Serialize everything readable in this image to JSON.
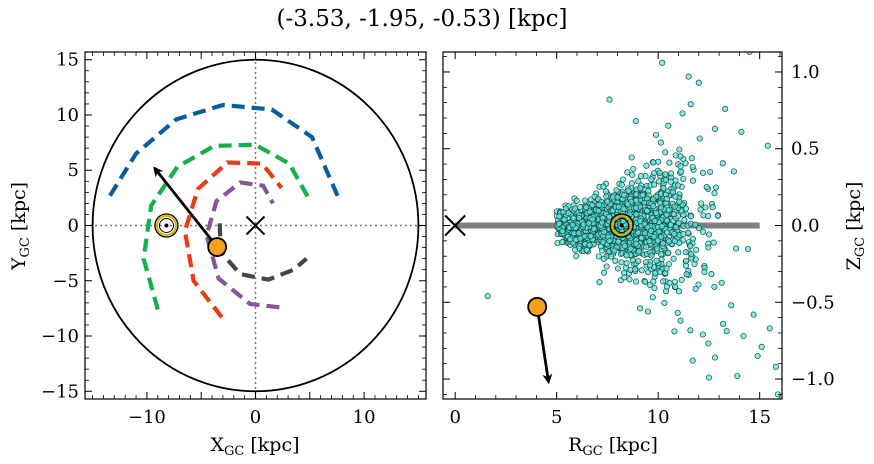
{
  "figure": {
    "title": "(-3.53, -1.95, -0.53) [kpc]"
  },
  "chart_data": [
    {
      "type": "line",
      "panel": "left",
      "xlabel": "X_GC [kpc]",
      "ylabel": "Y_GC [kpc]",
      "xlim": [
        -15.7,
        15.7
      ],
      "ylim": [
        -15.7,
        15.7
      ],
      "xticks": [
        -10,
        -5,
        0,
        5,
        10
      ],
      "xticklabels": [
        "−10",
        "",
        "0",
        "",
        "10"
      ],
      "yticks": [
        -15,
        -10,
        -5,
        0,
        5,
        10,
        15
      ],
      "yticklabels": [
        "−15",
        "−10",
        "−5",
        "0",
        "5",
        "10",
        "15"
      ],
      "outer_circle_radius": 15,
      "galactic_center": [
        0,
        0
      ],
      "sun": [
        -8.2,
        0
      ],
      "object": [
        -3.53,
        -1.95
      ],
      "velocity_arrow_tip": [
        -9.3,
        5.2
      ],
      "spiral_arms": [
        {
          "color": "#0b5e9c",
          "points": [
            [
              -13.4,
              2.7
            ],
            [
              -11,
              6.5
            ],
            [
              -7.3,
              9.6
            ],
            [
              -3,
              10.9
            ],
            [
              1.5,
              10.5
            ],
            [
              5.2,
              8
            ],
            [
              7.6,
              2.6
            ]
          ]
        },
        {
          "color": "#12b04a",
          "points": [
            [
              -9,
              -7.6
            ],
            [
              -10.3,
              -3
            ],
            [
              -9.6,
              1.8
            ],
            [
              -7.2,
              5.3
            ],
            [
              -3.8,
              7.2
            ],
            [
              0,
              7.3
            ],
            [
              3.1,
              5.6
            ],
            [
              5.1,
              2.1
            ]
          ]
        },
        {
          "color": "#ec3a12",
          "points": [
            [
              -3.1,
              -8.3
            ],
            [
              -5.7,
              -5
            ],
            [
              -6.5,
              -0.5
            ],
            [
              -5.3,
              3.3
            ],
            [
              -2.6,
              5.7
            ],
            [
              0.6,
              5.6
            ],
            [
              2.4,
              3.4
            ]
          ]
        },
        {
          "color": "#84569c",
          "points": [
            [
              2.2,
              -7.4
            ],
            [
              -0.5,
              -7.1
            ],
            [
              -3.4,
              -4.8
            ],
            [
              -4.5,
              -0.9
            ],
            [
              -3.6,
              2.2
            ],
            [
              -1.4,
              3.9
            ],
            [
              0.7,
              3.6
            ],
            [
              1.6,
              2
            ]
          ]
        },
        {
          "color": "#464646",
          "points": [
            [
              -3.3,
              0.2
            ],
            [
              -3.2,
              -2.4
            ],
            [
              -1.4,
              -4.4
            ],
            [
              1.2,
              -4.9
            ],
            [
              3.5,
              -4
            ],
            [
              4.7,
              -3
            ]
          ]
        }
      ]
    },
    {
      "type": "scatter",
      "panel": "right",
      "xlabel": "R_GC [kpc]",
      "ylabel": "Z_GC [kpc]",
      "xlim": [
        -0.6,
        16.1
      ],
      "ylim": [
        -1.13,
        1.13
      ],
      "xticks": [
        0,
        5,
        10,
        15
      ],
      "xticklabels": [
        "0",
        "5",
        "10",
        "15"
      ],
      "yticks": [
        -1.0,
        -0.5,
        0.0,
        0.5,
        1.0
      ],
      "yticklabels": [
        "−1.0",
        "−0.5",
        "0.0",
        "0.5",
        "1.0"
      ],
      "disk_line": [
        [
          0,
          0
        ],
        [
          15,
          0
        ]
      ],
      "galactic_center": [
        0,
        0
      ],
      "sun": [
        8.2,
        0
      ],
      "object": [
        4.04,
        -0.53
      ],
      "velocity_arrow_tip": [
        4.6,
        -1.02
      ],
      "star_point_color": "#5ee8dc",
      "stars_outliers": [
        [
          10.2,
          1.06
        ],
        [
          11.5,
          0.97
        ],
        [
          12,
          0.93
        ],
        [
          14.5,
          1.13
        ],
        [
          7.6,
          0.82
        ],
        [
          11.6,
          0.79
        ],
        [
          11.2,
          0.73
        ],
        [
          13.3,
          0.76
        ],
        [
          15.4,
          0.52
        ],
        [
          14.1,
          0.61
        ],
        [
          12.8,
          0.63
        ],
        [
          10.5,
          0.65
        ],
        [
          9.9,
          0.59
        ],
        [
          8.9,
          0.68
        ],
        [
          1.6,
          -0.46
        ],
        [
          12.8,
          -0.86
        ],
        [
          11.7,
          -0.88
        ],
        [
          15.8,
          -0.92
        ],
        [
          15.9,
          -1.1
        ],
        [
          12.5,
          -0.99
        ],
        [
          14.9,
          -0.85
        ],
        [
          14.2,
          -0.72
        ],
        [
          13.9,
          -0.98
        ],
        [
          10.8,
          -0.69
        ],
        [
          13.2,
          -0.64
        ],
        [
          11.1,
          -0.62
        ],
        [
          15.1,
          -0.79
        ],
        [
          15.5,
          -0.67
        ],
        [
          9.5,
          -0.56
        ],
        [
          13.6,
          -0.52
        ],
        [
          14.7,
          -0.58
        ],
        [
          12.2,
          -0.71
        ]
      ]
    }
  ]
}
